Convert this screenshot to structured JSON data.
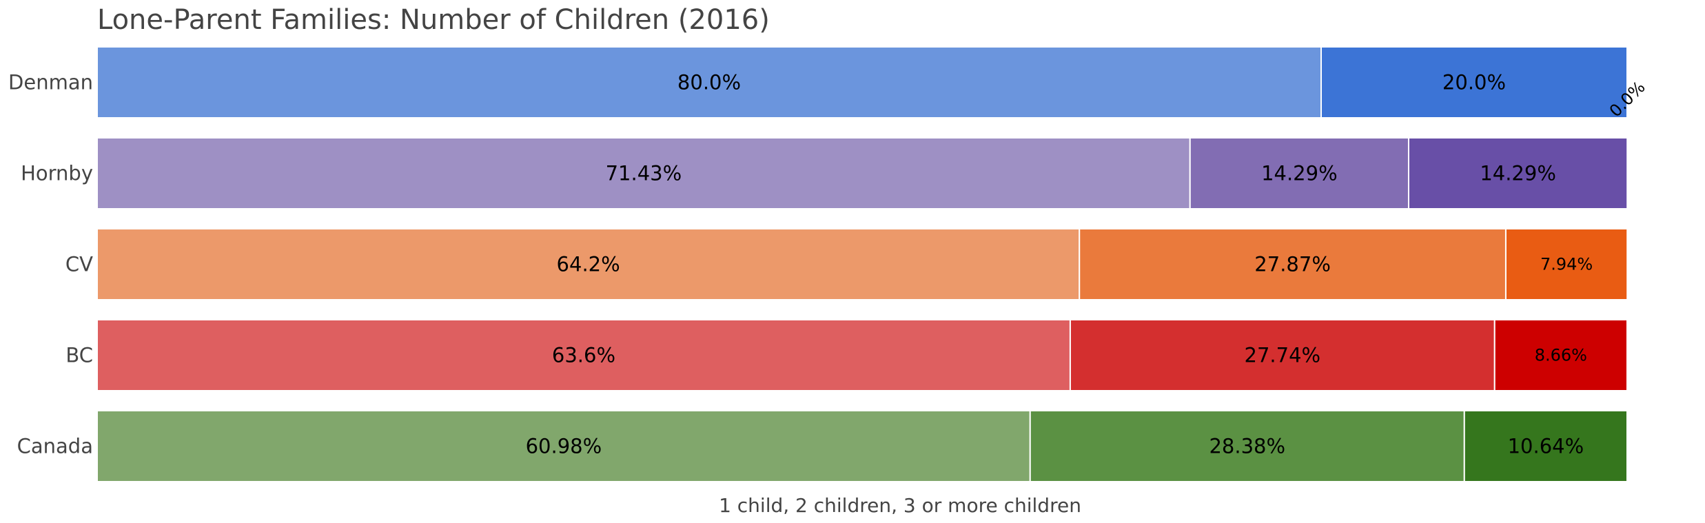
{
  "chart_data": {
    "type": "bar",
    "orientation": "horizontal",
    "stacked": true,
    "normalized_percent": true,
    "title": "Lone-Parent Families: Number of Children (2016)",
    "xlabel": "1 child, 2 children, 3 or more children",
    "ylabel": "",
    "xlim": [
      0,
      100
    ],
    "grid": false,
    "legend": "none",
    "categories": [
      "Denman",
      "Hornby",
      "CV",
      "BC",
      "Canada"
    ],
    "segments": [
      "1 child",
      "2 children",
      "3 or more children"
    ],
    "values": [
      [
        80.0,
        20.0,
        0.0
      ],
      [
        71.43,
        14.29,
        14.29
      ],
      [
        64.2,
        27.87,
        7.94
      ],
      [
        63.6,
        27.74,
        8.66
      ],
      [
        60.98,
        28.38,
        10.64
      ]
    ],
    "labels": [
      [
        "80.0%",
        "20.0%",
        "0.0%"
      ],
      [
        "71.43%",
        "14.29%",
        "14.29%"
      ],
      [
        "64.2%",
        "27.87%",
        "7.94%"
      ],
      [
        "63.6%",
        "27.74%",
        "8.66%"
      ],
      [
        "60.98%",
        "28.38%",
        "10.64%"
      ]
    ],
    "colors": [
      [
        "#6b95dd",
        "#3c74d6",
        "#2a5fc4"
      ],
      [
        "#9e90c4",
        "#826db3",
        "#684fa7"
      ],
      [
        "#ec996a",
        "#ea7a3c",
        "#e95c13"
      ],
      [
        "#de5f60",
        "#d42f2f",
        "#cd0000"
      ],
      [
        "#81a76c",
        "#5b9143",
        "#35761d"
      ]
    ]
  }
}
